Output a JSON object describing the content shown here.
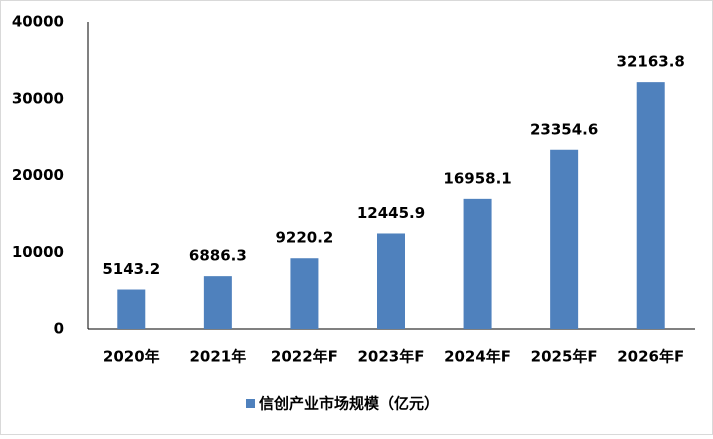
{
  "chart_data": {
    "type": "bar",
    "categories": [
      "2020年",
      "2021年",
      "2022年F",
      "2023年F",
      "2024年F",
      "2025年F",
      "2026年F"
    ],
    "series": [
      {
        "name": "信创产业市场规模（亿元）",
        "color": "#4f81bd",
        "values": [
          5143.2,
          6886.3,
          9220.2,
          12445.9,
          16958.1,
          23354.6,
          32163.8
        ]
      }
    ],
    "ylim": [
      0,
      40000
    ],
    "yticks": [
      0,
      10000,
      20000,
      30000,
      40000
    ],
    "grid": false,
    "legend": "bottom"
  }
}
